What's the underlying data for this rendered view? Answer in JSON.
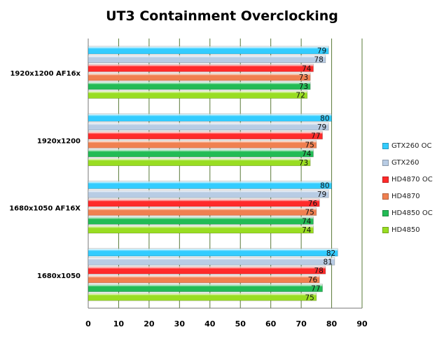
{
  "chart_data": {
    "type": "bar",
    "orientation": "horizontal",
    "title": "UT3 Containment Overclocking",
    "categories": [
      "1920x1200 AF16x",
      "1920x1200",
      "1680x1050 AF16X",
      "1680x1050"
    ],
    "series": [
      {
        "name": "GTX260 OC",
        "color": "#33ccff",
        "values": [
          79,
          80,
          80,
          82
        ]
      },
      {
        "name": "GTX260",
        "color": "#b8cce4",
        "values": [
          78,
          79,
          79,
          81
        ]
      },
      {
        "name": "HD4870 OC",
        "color": "#ff2a2a",
        "values": [
          74,
          77,
          76,
          78
        ]
      },
      {
        "name": "HD4870",
        "color": "#f08050",
        "values": [
          73,
          75,
          75,
          76
        ]
      },
      {
        "name": "HD4850 OC",
        "color": "#22bb55",
        "values": [
          73,
          74,
          74,
          77
        ]
      },
      {
        "name": "HD4850",
        "color": "#99dd22",
        "values": [
          72,
          73,
          74,
          75
        ]
      }
    ],
    "xlim": [
      0,
      90
    ],
    "xticks": [
      "0",
      "10",
      "20",
      "30",
      "40",
      "50",
      "60",
      "70",
      "80",
      "90"
    ],
    "grid": true,
    "legend": "right",
    "data_labels": true
  }
}
